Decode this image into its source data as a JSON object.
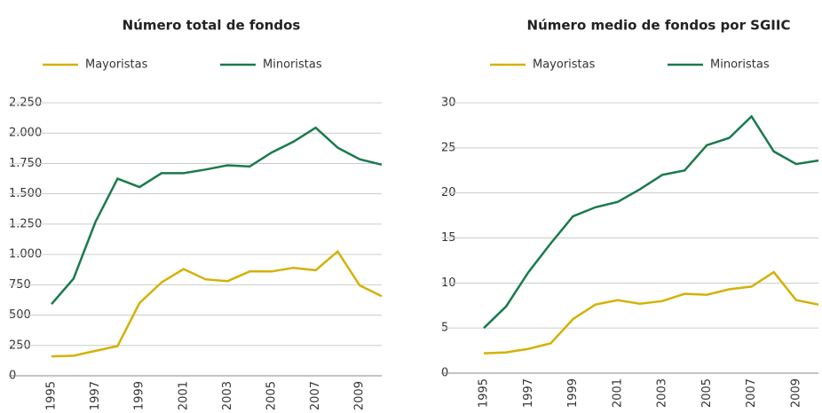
{
  "chart_data": [
    {
      "type": "line",
      "title": "Número total de fondos",
      "x": [
        1995,
        1996,
        1997,
        1998,
        1999,
        2000,
        2001,
        2002,
        2003,
        2004,
        2005,
        2006,
        2007,
        2008,
        2009,
        2010
      ],
      "xlim": [
        1995,
        2010
      ],
      "xticks": [
        1995,
        1997,
        1999,
        2001,
        2003,
        2005,
        2007,
        2009
      ],
      "ylim": [
        0,
        2250
      ],
      "yticks": [
        0,
        250,
        500,
        750,
        {
          "value": 1000,
          "label": "1.000"
        },
        {
          "value": 1250,
          "label": "1.250"
        },
        {
          "value": 1500,
          "label": "1.500"
        },
        {
          "value": 1750,
          "label": "1.750"
        },
        {
          "value": 2000,
          "label": "2.000"
        },
        {
          "value": 2250,
          "label": "2.250"
        }
      ],
      "grid": true,
      "series": [
        {
          "name": "Mayoristas",
          "color": "#d4b106",
          "values": [
            160,
            165,
            205,
            245,
            600,
            770,
            880,
            795,
            780,
            860,
            860,
            890,
            870,
            1025,
            745,
            655
          ]
        },
        {
          "name": "Minoristas",
          "color": "#1b7a4c",
          "values": [
            590,
            800,
            1270,
            1625,
            1555,
            1670,
            1670,
            1700,
            1735,
            1725,
            1840,
            1930,
            2045,
            1880,
            1785,
            1740
          ]
        }
      ]
    },
    {
      "type": "line",
      "title": "Número medio de fondos por SGIIC",
      "x": [
        1995,
        1996,
        1997,
        1998,
        1999,
        2000,
        2001,
        2002,
        2003,
        2004,
        2005,
        2006,
        2007,
        2008,
        2009,
        2010
      ],
      "xlim": [
        1995,
        2010
      ],
      "xticks": [
        1995,
        1997,
        1999,
        2001,
        2003,
        2005,
        2007,
        2009
      ],
      "ylim": [
        0,
        30
      ],
      "yticks": [
        0,
        5,
        10,
        15,
        20,
        25,
        30
      ],
      "grid": true,
      "series": [
        {
          "name": "Mayoristas",
          "color": "#d4b106",
          "values": [
            2.2,
            2.3,
            2.7,
            3.3,
            6,
            7.6,
            8.1,
            7.7,
            8,
            8.8,
            8.7,
            9.3,
            9.6,
            11.2,
            8.1,
            7.6
          ]
        },
        {
          "name": "Minoristas",
          "color": "#1b7a4c",
          "values": [
            5,
            7.4,
            11.2,
            14.4,
            17.4,
            18.4,
            19,
            20.4,
            22,
            22.5,
            25.3,
            26.1,
            28.5,
            24.6,
            23.2,
            23.6
          ]
        }
      ]
    }
  ]
}
